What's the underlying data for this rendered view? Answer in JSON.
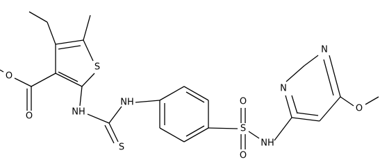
{
  "atoms": [
    {
      "label": "O"
    },
    {
      "label": "O"
    },
    {
      "label": "S"
    },
    {
      "label": "NH"
    },
    {
      "label": "NH"
    },
    {
      "label": "S"
    },
    {
      "label": "S"
    },
    {
      "label": "O"
    },
    {
      "label": "O"
    },
    {
      "label": "NH"
    },
    {
      "label": "N"
    },
    {
      "label": "N"
    },
    {
      "label": "O"
    }
  ]
}
